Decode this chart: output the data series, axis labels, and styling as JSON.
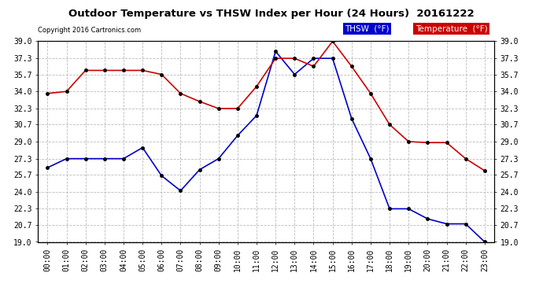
{
  "title": "Outdoor Temperature vs THSW Index per Hour (24 Hours)  20161222",
  "copyright": "Copyright 2016 Cartronics.com",
  "hours": [
    "00:00",
    "01:00",
    "02:00",
    "03:00",
    "04:00",
    "05:00",
    "06:00",
    "07:00",
    "08:00",
    "09:00",
    "10:00",
    "11:00",
    "12:00",
    "13:00",
    "14:00",
    "15:00",
    "16:00",
    "17:00",
    "18:00",
    "19:00",
    "20:00",
    "21:00",
    "22:00",
    "23:00"
  ],
  "temperature": [
    33.8,
    34.0,
    36.1,
    36.1,
    36.1,
    36.1,
    35.7,
    33.8,
    33.0,
    32.3,
    32.3,
    34.5,
    37.3,
    37.3,
    36.5,
    39.0,
    36.5,
    33.8,
    30.7,
    29.0,
    28.9,
    28.9,
    27.3,
    26.1
  ],
  "thsw": [
    26.4,
    27.3,
    27.3,
    27.3,
    27.3,
    28.4,
    25.6,
    24.1,
    26.2,
    27.3,
    29.6,
    31.6,
    38.0,
    35.7,
    37.3,
    37.3,
    31.3,
    27.3,
    22.3,
    22.3,
    21.3,
    20.8,
    20.8,
    19.0
  ],
  "temp_color": "#cc0000",
  "thsw_color": "#0000cc",
  "background_color": "#ffffff",
  "grid_color": "#bbbbbb",
  "ylim_min": 19.0,
  "ylim_max": 39.0,
  "yticks": [
    19.0,
    20.7,
    22.3,
    24.0,
    25.7,
    27.3,
    29.0,
    30.7,
    32.3,
    34.0,
    35.7,
    37.3,
    39.0
  ],
  "legend_thsw_bg": "#0000cc",
  "legend_temp_bg": "#cc0000",
  "legend_thsw_text": "THSW  (°F)",
  "legend_temp_text": "Temperature  (°F)"
}
